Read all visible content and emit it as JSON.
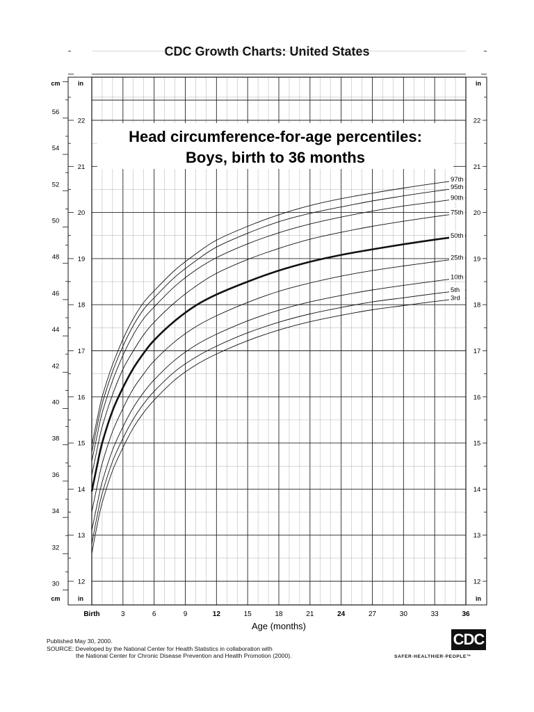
{
  "header": {
    "title": "CDC Growth Charts: United States"
  },
  "chart_data": {
    "type": "line",
    "title": "Head circumference-for-age percentiles:",
    "subtitle": "Boys, birth to 36 months",
    "xlabel": "Age (months)",
    "x_tick_labels": [
      {
        "value": 0,
        "label": "Birth",
        "bold": true
      },
      {
        "value": 3,
        "label": "3",
        "bold": false
      },
      {
        "value": 6,
        "label": "6",
        "bold": false
      },
      {
        "value": 9,
        "label": "9",
        "bold": false
      },
      {
        "value": 12,
        "label": "12",
        "bold": true
      },
      {
        "value": 15,
        "label": "15",
        "bold": false
      },
      {
        "value": 18,
        "label": "18",
        "bold": false
      },
      {
        "value": 21,
        "label": "21",
        "bold": false
      },
      {
        "value": 24,
        "label": "24",
        "bold": true
      },
      {
        "value": 27,
        "label": "27",
        "bold": false
      },
      {
        "value": 30,
        "label": "30",
        "bold": false
      },
      {
        "value": 33,
        "label": "33",
        "bold": false
      },
      {
        "value": 36,
        "label": "36",
        "bold": true
      }
    ],
    "xlim": [
      0,
      36
    ],
    "ylim_in": [
      11.7,
      23.5
    ],
    "cm_axis": {
      "unit": "cm",
      "ticks": [
        30,
        32,
        34,
        36,
        38,
        40,
        42,
        44,
        46,
        48,
        50,
        52,
        54,
        56
      ]
    },
    "in_axis": {
      "unit": "in",
      "ticks": [
        12,
        13,
        14,
        15,
        16,
        17,
        18,
        19,
        20,
        21,
        22
      ]
    },
    "grid": true,
    "x": [
      0,
      0.5,
      1,
      2,
      3,
      4,
      5,
      6,
      8,
      10,
      12,
      15,
      18,
      21,
      24,
      27,
      30,
      33,
      36
    ],
    "series": [
      {
        "name": "97th",
        "bold": false,
        "values": [
          14.95,
          15.5,
          16.0,
          16.7,
          17.25,
          17.7,
          18.05,
          18.3,
          18.75,
          19.1,
          19.4,
          19.7,
          19.95,
          20.15,
          20.3,
          20.42,
          20.53,
          20.63,
          20.72
        ]
      },
      {
        "name": "95th",
        "bold": false,
        "values": [
          14.8,
          15.35,
          15.85,
          16.55,
          17.1,
          17.55,
          17.9,
          18.15,
          18.6,
          18.95,
          19.25,
          19.55,
          19.8,
          19.98,
          20.12,
          20.25,
          20.36,
          20.46,
          20.55
        ]
      },
      {
        "name": "90th",
        "bold": false,
        "values": [
          14.6,
          15.15,
          15.65,
          16.35,
          16.9,
          17.35,
          17.7,
          17.95,
          18.4,
          18.75,
          19.02,
          19.32,
          19.56,
          19.75,
          19.9,
          20.03,
          20.14,
          20.23,
          20.32
        ]
      },
      {
        "name": "75th",
        "bold": false,
        "values": [
          14.3,
          14.85,
          15.35,
          16.05,
          16.6,
          17.0,
          17.35,
          17.62,
          18.05,
          18.4,
          18.68,
          18.98,
          19.22,
          19.42,
          19.57,
          19.7,
          19.81,
          19.91,
          20.0
        ]
      },
      {
        "name": "50th",
        "bold": true,
        "values": [
          13.95,
          14.5,
          15.0,
          15.7,
          16.2,
          16.62,
          16.95,
          17.23,
          17.65,
          17.98,
          18.22,
          18.5,
          18.74,
          18.93,
          19.08,
          19.2,
          19.31,
          19.41,
          19.5
        ]
      },
      {
        "name": "25th",
        "bold": false,
        "values": [
          13.5,
          14.05,
          14.55,
          15.25,
          15.75,
          16.18,
          16.5,
          16.78,
          17.2,
          17.52,
          17.76,
          18.05,
          18.29,
          18.47,
          18.62,
          18.74,
          18.84,
          18.93,
          19.02
        ]
      },
      {
        "name": "10th",
        "bold": false,
        "values": [
          13.1,
          13.65,
          14.15,
          14.85,
          15.35,
          15.77,
          16.1,
          16.37,
          16.8,
          17.12,
          17.36,
          17.65,
          17.88,
          18.06,
          18.2,
          18.32,
          18.42,
          18.51,
          18.6
        ]
      },
      {
        "name": "5th",
        "bold": false,
        "values": [
          12.8,
          13.4,
          13.9,
          14.6,
          15.1,
          15.52,
          15.85,
          16.12,
          16.55,
          16.86,
          17.1,
          17.39,
          17.62,
          17.8,
          17.94,
          18.06,
          18.15,
          18.24,
          18.32
        ]
      },
      {
        "name": "3rd",
        "bold": false,
        "values": [
          12.6,
          13.2,
          13.7,
          14.4,
          14.9,
          15.33,
          15.66,
          15.93,
          16.37,
          16.69,
          16.93,
          17.22,
          17.45,
          17.63,
          17.77,
          17.89,
          17.98,
          18.07,
          18.15
        ]
      }
    ]
  },
  "footer": {
    "published": "Published May 30, 2000.",
    "source_line1": "SOURCE: Developed by the National Center for Health Statistics in collaboration with",
    "source_line2": "the National Center for Chronic Disease Prevention and Health Promotion (2000)."
  },
  "logo": {
    "text": "CDC",
    "tagline": "SAFER·HEALTHIER·PEOPLE™"
  }
}
